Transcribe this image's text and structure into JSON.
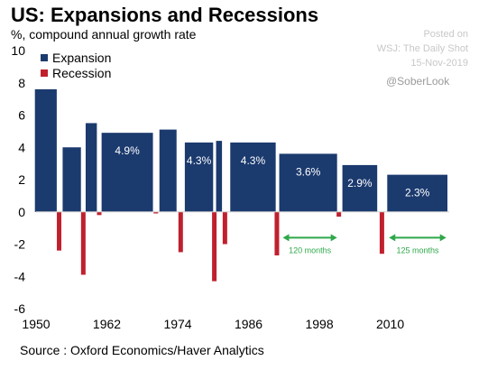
{
  "header": {
    "title": "US: Expansions and Recessions",
    "subtitle": "%, compound annual growth rate"
  },
  "credit": {
    "posted_label": "Posted on",
    "outlet": "WSJ: The Daily Shot",
    "date": "15-Nov-2019",
    "handle": "@SoberLook"
  },
  "source": "Source : Oxford Economics/Haver Analytics",
  "colors": {
    "expansion": "#1b3a6e",
    "recession": "#c0202e",
    "annotation": "#2ea84a"
  },
  "chart_data": {
    "type": "bar",
    "ylim": [
      -6,
      10
    ],
    "yticks": [
      -6,
      -4,
      -2,
      0,
      2,
      4,
      6,
      8,
      10
    ],
    "xlim": [
      1950,
      2020
    ],
    "xticks": [
      1950,
      1962,
      1974,
      1986,
      1998,
      2010
    ],
    "legend": {
      "placement": "top-left"
    },
    "series": [
      {
        "name": "Expansion",
        "segments": [
          {
            "start": 1949.8,
            "end": 1953.5,
            "value": 7.6
          },
          {
            "start": 1954.5,
            "end": 1957.6,
            "value": 4.0
          },
          {
            "start": 1958.4,
            "end": 1960.3,
            "value": 5.5
          },
          {
            "start": 1961.1,
            "end": 1969.8,
            "value": 4.9,
            "label": "4.9%"
          },
          {
            "start": 1970.9,
            "end": 1973.8,
            "value": 5.1
          },
          {
            "start": 1975.2,
            "end": 1980.0,
            "value": 4.3,
            "label": "4.3%"
          },
          {
            "start": 1980.5,
            "end": 1981.5,
            "value": 4.4
          },
          {
            "start": 1982.9,
            "end": 1990.6,
            "value": 4.3,
            "label": "4.3%"
          },
          {
            "start": 1991.2,
            "end": 2001.0,
            "value": 3.6,
            "label": "3.6%"
          },
          {
            "start": 2001.9,
            "end": 2007.8,
            "value": 2.9,
            "label": "2.9%"
          },
          {
            "start": 2009.5,
            "end": 2019.7,
            "value": 2.3,
            "label": "2.3%"
          }
        ]
      },
      {
        "name": "Recession",
        "bars": [
          {
            "x": 1953.9,
            "value": -2.4
          },
          {
            "x": 1958.0,
            "value": -3.9
          },
          {
            "x": 1960.7,
            "value": -0.2
          },
          {
            "x": 1970.3,
            "value": -0.1
          },
          {
            "x": 1974.5,
            "value": -2.5
          },
          {
            "x": 1980.2,
            "value": -4.3
          },
          {
            "x": 1982.0,
            "value": -2.0
          },
          {
            "x": 1990.8,
            "value": -2.7
          },
          {
            "x": 2001.3,
            "value": -0.3
          },
          {
            "x": 2008.6,
            "value": -2.6
          }
        ]
      }
    ],
    "annotations": [
      {
        "text": "120 months",
        "from": 1991.8,
        "to": 2001.0,
        "y": -1.6
      },
      {
        "text": "125 months",
        "from": 2009.8,
        "to": 2019.5,
        "y": -1.6
      }
    ]
  }
}
